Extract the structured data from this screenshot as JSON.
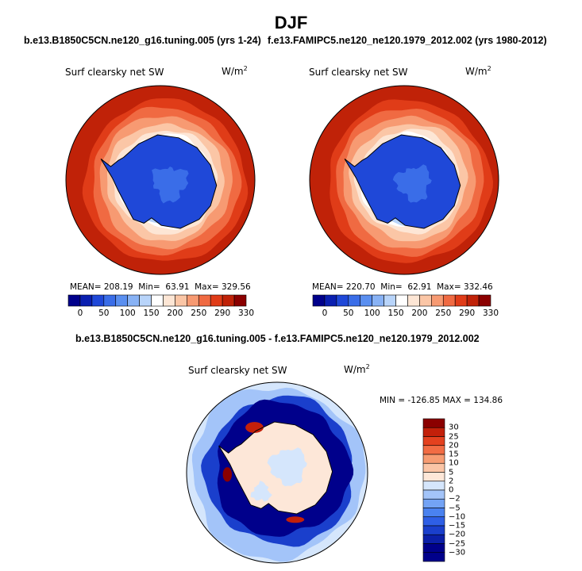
{
  "header": {
    "season": "DJF",
    "case1": "b.e13.B1850C5CN.ne120_g16.tuning.005 (yrs 1-24)",
    "case2": "f.e13.FAMIPC5.ne120_ne120.1979_2012.002 (yrs 1980-2012)",
    "diff_title": "b.e13.B1850C5CN.ne120_g16.tuning.005 - f.e13.FAMIPC5.ne120_ne120.1979_2012.002"
  },
  "colors": {
    "abs_scale": [
      "#00008b",
      "#0a1fb0",
      "#1f48d8",
      "#3a6de8",
      "#5a8ff0",
      "#88b2f5",
      "#b8d4fa",
      "#ffffff",
      "#fde6d5",
      "#fbc6a6",
      "#f79a72",
      "#f06a42",
      "#e03c18",
      "#c02208",
      "#8b0000"
    ],
    "diff_scale": [
      "#00008b",
      "#0b1fa8",
      "#1a3fcc",
      "#2e5fe6",
      "#4a82f0",
      "#73a3f5",
      "#a3c4f9",
      "#d5e6fc",
      "#fde7d8",
      "#fbc5a6",
      "#f79c72",
      "#f26c44",
      "#e4411f",
      "#c3200a",
      "#8b0000"
    ],
    "coast": "#000000"
  },
  "chart_data": [
    {
      "type": "heatmap",
      "panel": "case1",
      "title": "Surf clearsky net SW",
      "units": "W/m2",
      "projection": "south-polar-stereographic",
      "stats": {
        "mean": "208.19",
        "min": "63.91",
        "max": "329.56"
      },
      "stats_text": "MEAN= 208.19  Min=  63.91  Max= 329.56",
      "colorbar_ticks": [
        "0",
        "50",
        "100",
        "150",
        "200",
        "250",
        "290",
        "330"
      ],
      "regions": {
        "antarctic_continent": 85,
        "sea_ice_zone": 140,
        "southern_ocean_rim": 320
      }
    },
    {
      "type": "heatmap",
      "panel": "case2",
      "title": "Surf clearsky net SW",
      "units": "W/m2",
      "projection": "south-polar-stereographic",
      "stats": {
        "mean": "220.70",
        "min": "62.91",
        "max": "332.46"
      },
      "stats_text": "MEAN= 220.70  Min=  62.91  Max= 332.46",
      "colorbar_ticks": [
        "0",
        "50",
        "100",
        "150",
        "200",
        "250",
        "290",
        "330"
      ],
      "regions": {
        "antarctic_continent": 85,
        "sea_ice_zone": 150,
        "southern_ocean_rim": 325
      }
    },
    {
      "type": "heatmap",
      "panel": "difference",
      "title": "Surf clearsky net SW",
      "units": "W/m2",
      "projection": "south-polar-stereographic",
      "stats": {
        "min": "-126.85",
        "max": "134.86"
      },
      "stats_text": "MIN = -126.85 MAX = 134.86",
      "colorbar_ticks": [
        "30",
        "25",
        "20",
        "15",
        "10",
        "5",
        "2",
        "0",
        "−2",
        "−5",
        "−10",
        "−15",
        "−20",
        "−25",
        "−30"
      ],
      "regions": {
        "antarctic_continent": 2,
        "sea_ice_ring": -30,
        "outer_ocean": -5
      }
    }
  ]
}
